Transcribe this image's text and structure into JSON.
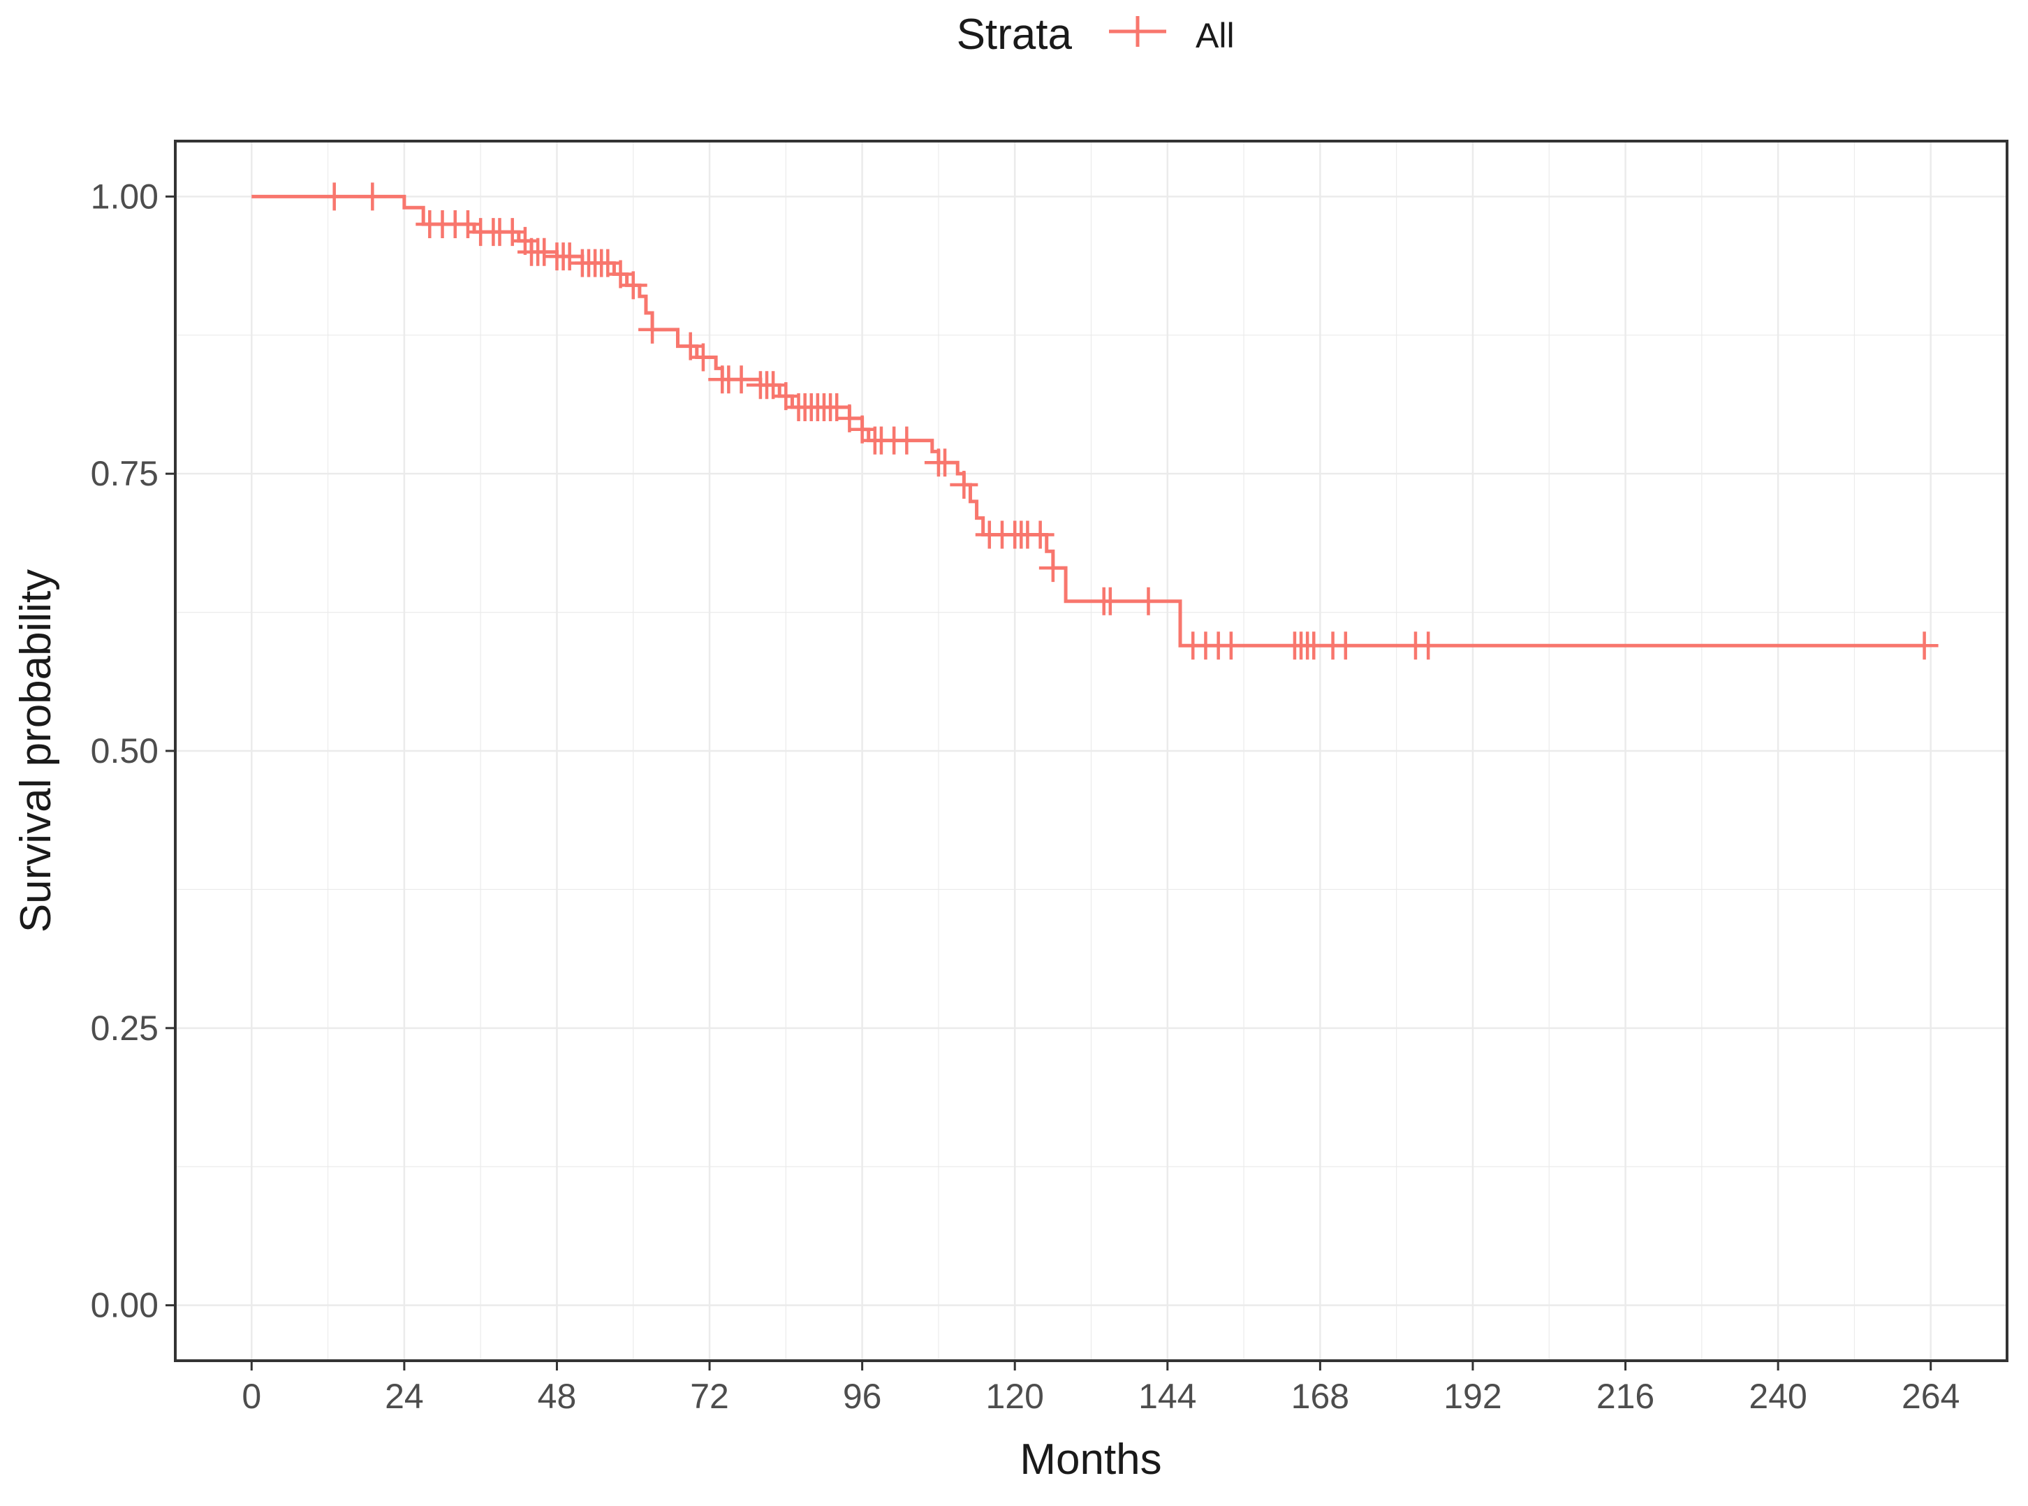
{
  "chart_data": {
    "type": "line",
    "subtype": "kaplan-meier",
    "xlabel": "Months",
    "ylabel": "Survival probability",
    "xlim": [
      -12,
      276
    ],
    "ylim": [
      -0.05,
      1.05
    ],
    "x_ticks": [
      0,
      24,
      48,
      72,
      96,
      120,
      144,
      168,
      192,
      216,
      240,
      264
    ],
    "y_ticks": [
      0.0,
      0.25,
      0.5,
      0.75,
      1.0
    ],
    "y_tick_labels": [
      "0.00",
      "0.25",
      "0.50",
      "0.75",
      "1.00"
    ],
    "grid": true,
    "legend": {
      "position": "top",
      "title": "Strata",
      "entries": [
        "All"
      ]
    },
    "series": [
      {
        "name": "All",
        "color": "#f8766d",
        "steps": [
          [
            0,
            1.0
          ],
          [
            24,
            0.99
          ],
          [
            27,
            0.975
          ],
          [
            35,
            0.968
          ],
          [
            42,
            0.96
          ],
          [
            44,
            0.95
          ],
          [
            48,
            0.946
          ],
          [
            52,
            0.94
          ],
          [
            57,
            0.93
          ],
          [
            59,
            0.92
          ],
          [
            61,
            0.91
          ],
          [
            62,
            0.895
          ],
          [
            63,
            0.88
          ],
          [
            67,
            0.865
          ],
          [
            70,
            0.855
          ],
          [
            73,
            0.845
          ],
          [
            74,
            0.835
          ],
          [
            80,
            0.83
          ],
          [
            83,
            0.82
          ],
          [
            85,
            0.81
          ],
          [
            94,
            0.8
          ],
          [
            96,
            0.79
          ],
          [
            97,
            0.78
          ],
          [
            107,
            0.77
          ],
          [
            108,
            0.76
          ],
          [
            111,
            0.75
          ],
          [
            112,
            0.74
          ],
          [
            113,
            0.725
          ],
          [
            114,
            0.71
          ],
          [
            115,
            0.695
          ],
          [
            125,
            0.68
          ],
          [
            126,
            0.665
          ],
          [
            128,
            0.635
          ],
          [
            146,
            0.595
          ],
          [
            263,
            0.595
          ]
        ],
        "censored": [
          [
            13,
            1.0
          ],
          [
            19,
            1.0
          ],
          [
            28,
            0.975
          ],
          [
            30,
            0.975
          ],
          [
            32,
            0.975
          ],
          [
            34,
            0.975
          ],
          [
            36,
            0.968
          ],
          [
            38,
            0.968
          ],
          [
            39,
            0.968
          ],
          [
            41,
            0.968
          ],
          [
            43,
            0.96
          ],
          [
            44,
            0.95
          ],
          [
            45,
            0.95
          ],
          [
            46,
            0.95
          ],
          [
            48,
            0.946
          ],
          [
            49,
            0.946
          ],
          [
            50,
            0.946
          ],
          [
            52,
            0.94
          ],
          [
            53,
            0.94
          ],
          [
            54,
            0.94
          ],
          [
            55,
            0.94
          ],
          [
            56,
            0.94
          ],
          [
            58,
            0.93
          ],
          [
            60,
            0.92
          ],
          [
            63,
            0.88
          ],
          [
            69,
            0.865
          ],
          [
            71,
            0.855
          ],
          [
            74,
            0.835
          ],
          [
            75,
            0.835
          ],
          [
            77,
            0.835
          ],
          [
            80,
            0.83
          ],
          [
            81,
            0.83
          ],
          [
            82,
            0.83
          ],
          [
            84,
            0.82
          ],
          [
            86,
            0.81
          ],
          [
            87,
            0.81
          ],
          [
            88,
            0.81
          ],
          [
            89,
            0.81
          ],
          [
            90,
            0.81
          ],
          [
            91,
            0.81
          ],
          [
            92,
            0.81
          ],
          [
            94,
            0.8
          ],
          [
            96,
            0.79
          ],
          [
            98,
            0.78
          ],
          [
            99,
            0.78
          ],
          [
            101,
            0.78
          ],
          [
            103,
            0.78
          ],
          [
            108,
            0.76
          ],
          [
            109,
            0.76
          ],
          [
            112,
            0.74
          ],
          [
            116,
            0.695
          ],
          [
            118,
            0.695
          ],
          [
            120,
            0.695
          ],
          [
            121,
            0.695
          ],
          [
            122,
            0.695
          ],
          [
            124,
            0.695
          ],
          [
            126,
            0.665
          ],
          [
            134,
            0.635
          ],
          [
            135,
            0.635
          ],
          [
            141,
            0.635
          ],
          [
            148,
            0.595
          ],
          [
            150,
            0.595
          ],
          [
            152,
            0.595
          ],
          [
            154,
            0.595
          ],
          [
            164,
            0.595
          ],
          [
            165,
            0.595
          ],
          [
            166,
            0.595
          ],
          [
            167,
            0.595
          ],
          [
            170,
            0.595
          ],
          [
            172,
            0.595
          ],
          [
            183,
            0.595
          ],
          [
            185,
            0.595
          ],
          [
            263,
            0.595
          ]
        ]
      }
    ]
  }
}
